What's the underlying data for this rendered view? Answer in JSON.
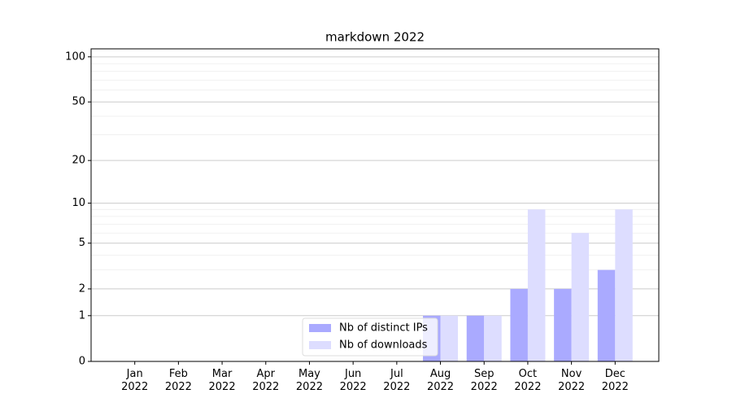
{
  "chart_data": {
    "type": "bar",
    "title": "markdown 2022",
    "categories": [
      "Jan\n2022",
      "Feb\n2022",
      "Mar\n2022",
      "Apr\n2022",
      "May\n2022",
      "Jun\n2022",
      "Jul\n2022",
      "Aug\n2022",
      "Sep\n2022",
      "Oct\n2022",
      "Nov\n2022",
      "Dec\n2022"
    ],
    "series": [
      {
        "name": "Nb of distinct IPs",
        "color": "#aaaaff",
        "values": [
          0,
          0,
          0,
          0,
          0,
          0,
          0,
          1,
          1,
          2,
          2,
          3
        ]
      },
      {
        "name": "Nb of downloads",
        "color": "#ddddff",
        "values": [
          0,
          0,
          0,
          0,
          0,
          0,
          0,
          1,
          1,
          9,
          6,
          9
        ]
      }
    ],
    "yscale": "log1p",
    "ylim": [
      0,
      113
    ],
    "yticks": [
      0,
      1,
      2,
      5,
      10,
      20,
      50,
      100
    ],
    "minor_yticks": [
      3,
      4,
      6,
      7,
      8,
      9,
      30,
      40,
      60,
      70,
      80,
      90
    ],
    "grid": true,
    "legend": "lower center"
  }
}
